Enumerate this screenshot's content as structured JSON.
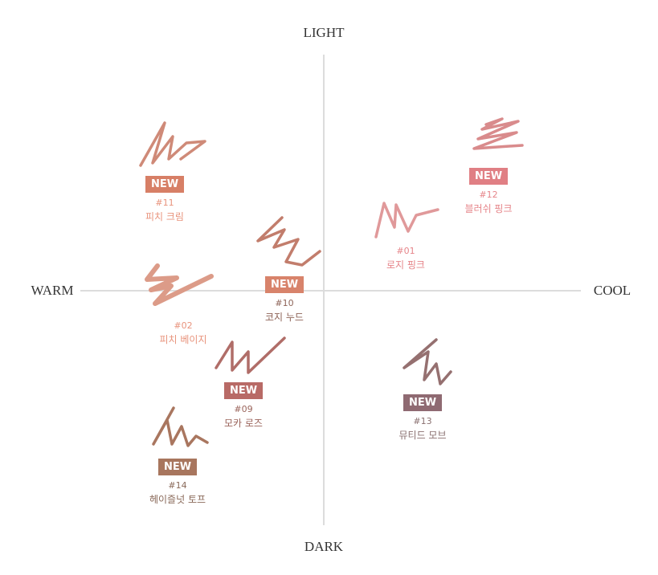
{
  "axes": {
    "top": "LIGHT",
    "bottom": "DARK",
    "left": "WARM",
    "right": "COOL"
  },
  "items": [
    {
      "id": "11",
      "num": "#11",
      "name": "피치 크림",
      "badge": "NEW",
      "badge_color": "#d77f66",
      "text_color": "#e8937c",
      "swatch_color": "#cf8a78"
    },
    {
      "id": "12",
      "num": "#12",
      "name": "블러쉬 핑크",
      "badge": "NEW",
      "badge_color": "#e07f84",
      "text_color": "#e6858a",
      "swatch_color": "#d98b8c"
    },
    {
      "id": "01",
      "num": "#01",
      "name": "로지 핑크",
      "badge": "",
      "text_color": "#e6858a",
      "swatch_color": "#e0999a"
    },
    {
      "id": "10",
      "num": "#10",
      "name": "코지 누드",
      "badge": "NEW",
      "badge_color": "#d8836b",
      "text_color": "#8e6458",
      "swatch_color": "#c27d6c"
    },
    {
      "id": "02",
      "num": "#02",
      "name": "피치 베이지",
      "badge": "",
      "text_color": "#e8937c",
      "swatch_color": "#dc9b88"
    },
    {
      "id": "09",
      "num": "#09",
      "name": "모카 로즈",
      "badge": "NEW",
      "badge_color": "#b86a66",
      "text_color": "#9b655c",
      "swatch_color": "#b06d68"
    },
    {
      "id": "13",
      "num": "#13",
      "name": "뮤티드 모브",
      "badge": "NEW",
      "badge_color": "#8f6a72",
      "text_color": "#8a7070",
      "swatch_color": "#957070"
    },
    {
      "id": "14",
      "num": "#14",
      "name": "헤이즐넛 토프",
      "badge": "NEW",
      "badge_color": "#a8765e",
      "text_color": "#8a6a5a",
      "swatch_color": "#a9765f"
    }
  ]
}
